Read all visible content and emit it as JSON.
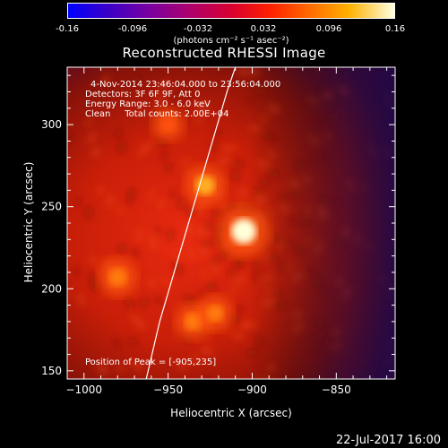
{
  "colorbar": {
    "ticks": [
      "-0.16",
      "-0.096",
      "-0.032",
      "0.032",
      "0.096",
      "0.16"
    ],
    "units": "(photons cm⁻² s⁻¹ asec⁻²)"
  },
  "chart_data": {
    "type": "heatmap",
    "title": "Reconstructed RHESSI Image",
    "xlabel": "Heliocentric X (arcsec)",
    "ylabel": "Heliocentric Y (arcsec)",
    "xlim": [
      -1010,
      -815
    ],
    "ylim": [
      145,
      335
    ],
    "xticks": [
      -1000,
      -950,
      -900,
      -850
    ],
    "xtick_labels": [
      "−1000",
      "−950",
      "−900",
      "−850"
    ],
    "yticks": [
      150,
      200,
      250,
      300
    ],
    "ytick_labels": [
      "150",
      "200",
      "250",
      "300"
    ],
    "colorbar_range": [
      -0.16,
      0.16
    ],
    "info_lines": [
      "4-Nov-2014 23:46:04.000 to 23:56:04.000",
      "Detectors: 3F 6F 9F, Att 0",
      "Energy Range: 3.0 - 6.0 keV",
      "Clean     Total counts: 2.00E+04"
    ],
    "peak_text": "Position of Peak = [-905,235]",
    "peak": [
      -905,
      235
    ],
    "sources": [
      {
        "x": -905,
        "y": 235,
        "intensity": 0.16
      },
      {
        "x": -928,
        "y": 263,
        "intensity": 0.11
      },
      {
        "x": -980,
        "y": 207,
        "intensity": 0.1
      },
      {
        "x": -935,
        "y": 180,
        "intensity": 0.09
      },
      {
        "x": -922,
        "y": 185,
        "intensity": 0.085
      },
      {
        "x": -950,
        "y": 300,
        "intensity": 0.07
      }
    ],
    "limb": [
      [
        -963,
        145
      ],
      [
        -955,
        180
      ],
      [
        -945,
        215
      ],
      [
        -935,
        250
      ],
      [
        -925,
        285
      ],
      [
        -915,
        320
      ],
      [
        -910,
        335
      ]
    ]
  },
  "footer": {
    "date": "22-Jul-2017 16:00"
  }
}
